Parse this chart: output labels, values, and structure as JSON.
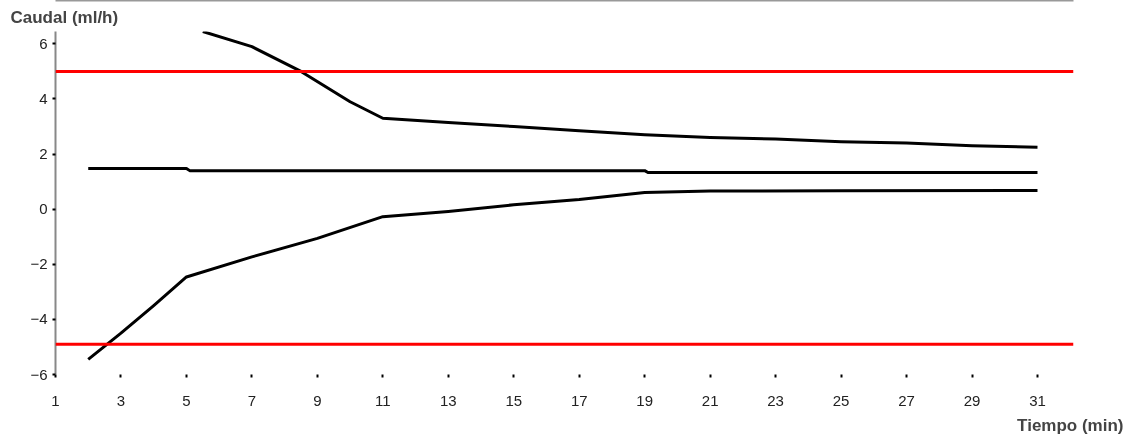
{
  "chart_data": {
    "type": "line",
    "xlabel": "Tiempo (min)",
    "ylabel": "Caudal (ml/h)",
    "xlim": [
      1,
      32.1
    ],
    "ylim": [
      -6,
      6.45
    ],
    "xticks": [
      1,
      3,
      5,
      7,
      9,
      11,
      13,
      15,
      17,
      19,
      21,
      23,
      25,
      27,
      29,
      31
    ],
    "yticks": [
      -6,
      -4,
      -2,
      0,
      2,
      4,
      6
    ],
    "grid": false,
    "line_style": "solid",
    "marker": "none",
    "series": [
      {
        "color": "#000000",
        "x": [
          5.5,
          7,
          8.5,
          10,
          11,
          13,
          15,
          17,
          19,
          21,
          23,
          25,
          27,
          29,
          31
        ],
        "values": [
          6.45,
          5.9,
          5.0,
          3.9,
          3.3,
          3.15,
          3.0,
          2.85,
          2.7,
          2.6,
          2.55,
          2.45,
          2.4,
          2.3,
          2.25
        ]
      },
      {
        "color": "#000000",
        "x": [
          2,
          5,
          5.1,
          19,
          19.1,
          31
        ],
        "values": [
          1.48,
          1.48,
          1.4,
          1.4,
          1.33,
          1.33
        ]
      },
      {
        "color": "#000000",
        "x": [
          2,
          3,
          4,
          5,
          7,
          9,
          11,
          13,
          15,
          17,
          19,
          21,
          25,
          31
        ],
        "values": [
          -5.45,
          -4.5,
          -3.5,
          -2.46,
          -1.73,
          -1.06,
          -0.27,
          -0.08,
          0.16,
          0.35,
          0.61,
          0.66,
          0.67,
          0.68
        ]
      }
    ],
    "ref_lines": [
      {
        "axis": "y",
        "value": 5,
        "color": "#ff0000"
      },
      {
        "axis": "y",
        "value": -4.9,
        "color": "#ff0000"
      }
    ]
  }
}
